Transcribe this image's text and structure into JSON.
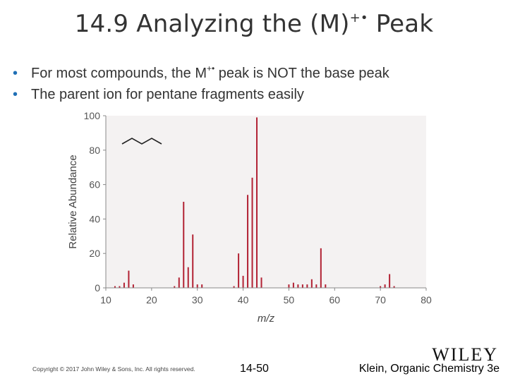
{
  "slide": {
    "title_main": "14.9 Analyzing the (M)",
    "title_sup": "+•",
    "title_tail": " Peak",
    "bullets": [
      {
        "pre": "For most compounds, the M",
        "sup": "+•",
        "post": " peak is NOT the base peak"
      },
      {
        "pre": "The parent ion for pentane fragments easily",
        "sup": "",
        "post": ""
      }
    ]
  },
  "footer": {
    "copyright": "Copyright © 2017 John Wiley & Sons, Inc. All rights reserved.",
    "page": "14-50",
    "reference": "Klein, Organic Chemistry 3e",
    "logo": "WILEY"
  },
  "chart_data": {
    "type": "bar",
    "xlabel": "m/z",
    "ylabel": "Relative Abundance",
    "xlim": [
      10,
      80
    ],
    "ylim": [
      0,
      100
    ],
    "xticks": [
      10,
      20,
      30,
      40,
      50,
      60,
      70,
      80
    ],
    "yticks": [
      0,
      20,
      40,
      60,
      80,
      100
    ],
    "grid": false,
    "bar_color": "#b22234",
    "background_color": "#f4f2f2",
    "x": [
      12,
      13,
      14,
      15,
      16,
      25,
      26,
      27,
      28,
      29,
      30,
      31,
      38,
      39,
      40,
      41,
      42,
      43,
      44,
      50,
      51,
      52,
      53,
      54,
      55,
      56,
      57,
      58,
      70,
      71,
      72,
      73
    ],
    "values": [
      1,
      1,
      3,
      10,
      2,
      1,
      6,
      50,
      12,
      31,
      2,
      2,
      1,
      20,
      7,
      54,
      64,
      99,
      6,
      2,
      3,
      2,
      2,
      2,
      5,
      2,
      23,
      2,
      1,
      2,
      8,
      1
    ],
    "inset_structure": "pentane zigzag skeletal formula"
  }
}
